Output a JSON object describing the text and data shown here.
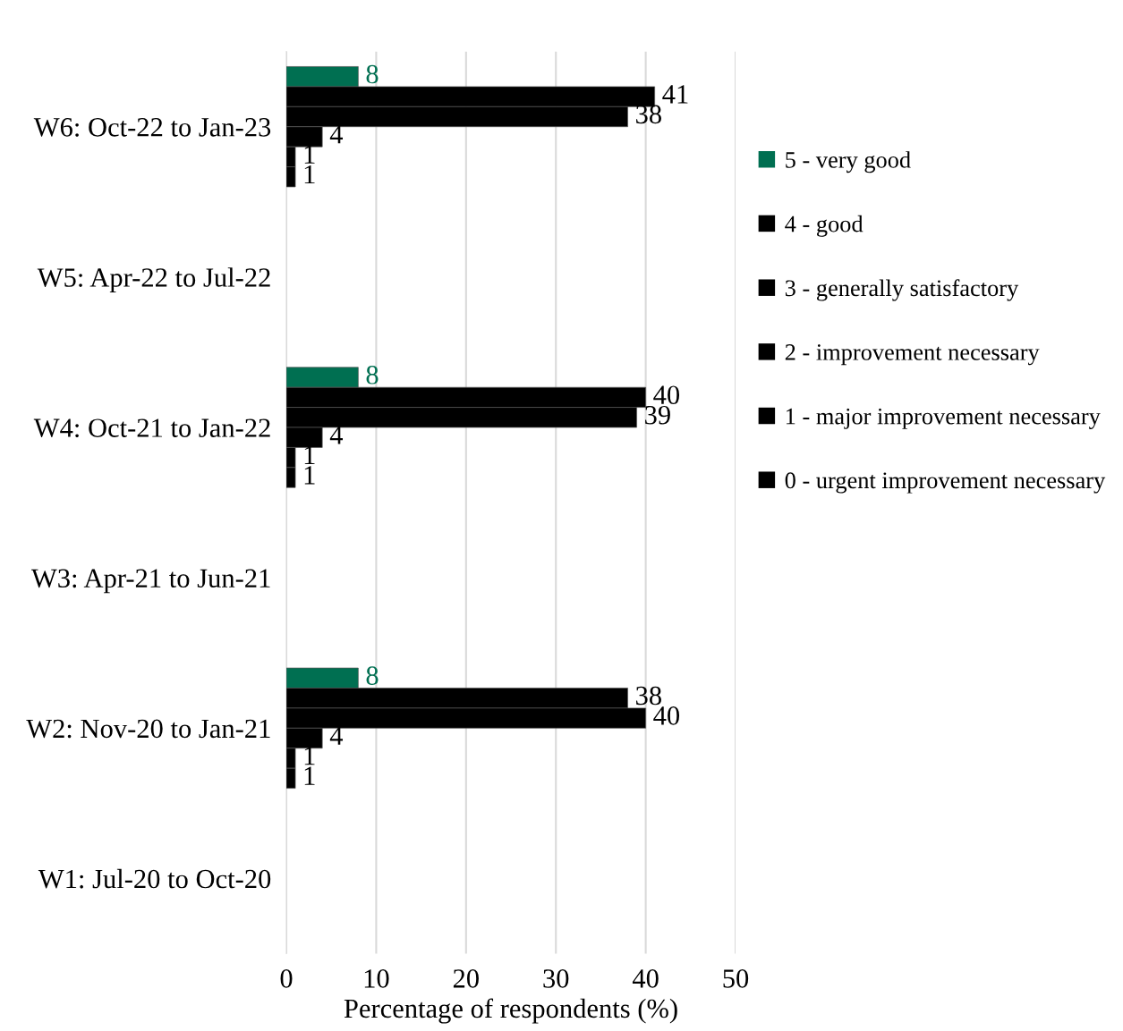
{
  "chart_data": {
    "type": "bar",
    "orientation": "horizontal",
    "xlabel": "Percentage of respondents (%)",
    "categories": [
      "W6: Oct-22 to Jan-23",
      "W5: Apr-22 to Jul-22",
      "W4: Oct-21 to Jan-22",
      "W3: Apr-21 to Jun-21",
      "W2: Nov-20 to Jan-21",
      "W1: Jul-20 to Oct-20"
    ],
    "series": [
      {
        "name": "5 - very good",
        "color": "#006f51",
        "values": [
          8,
          null,
          8,
          null,
          8,
          null
        ]
      },
      {
        "name": "4 - good",
        "color": "#000000",
        "values": [
          41,
          null,
          40,
          null,
          38,
          null
        ]
      },
      {
        "name": "3 - generally satisfactory",
        "color": "#000000",
        "values": [
          38,
          null,
          39,
          null,
          40,
          null
        ]
      },
      {
        "name": "2 - improvement necessary",
        "color": "#000000",
        "values": [
          4,
          null,
          4,
          null,
          4,
          null
        ]
      },
      {
        "name": "1 - major improvement necessary",
        "color": "#000000",
        "values": [
          1,
          null,
          1,
          null,
          1,
          null
        ]
      },
      {
        "name": "0 - urgent improvement necessary",
        "color": "#000000",
        "values": [
          1,
          null,
          1,
          null,
          1,
          null
        ]
      }
    ],
    "xlim": [
      0,
      50
    ],
    "xticks": [
      0,
      10,
      20,
      30,
      40,
      50
    ],
    "grid": "x",
    "legend": "right",
    "data_labels": true
  }
}
